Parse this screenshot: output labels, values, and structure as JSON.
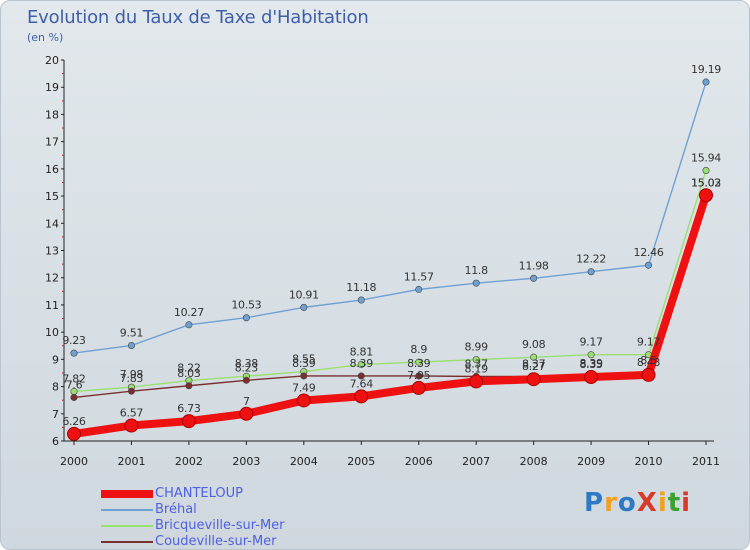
{
  "header": {
    "title": "Evolution du Taux de Taxe d'Habitation",
    "unit": "(en %)"
  },
  "logo": {
    "text": "ProXiti",
    "colors": [
      "#2e78c6",
      "#f2a020",
      "#2e78c6",
      "#d83a2a",
      "#f2a020",
      "#3aa02e",
      "#d83a2a"
    ]
  },
  "chart_data": {
    "type": "line",
    "title": "Evolution du Taux de Taxe d'Habitation",
    "ylabel": "(en %)",
    "xlabel": "",
    "ylim": [
      6,
      20
    ],
    "yticks": [
      6,
      7,
      8,
      9,
      10,
      11,
      12,
      13,
      14,
      15,
      16,
      17,
      18,
      19,
      20
    ],
    "grid": false,
    "legend_position": "bottom-left",
    "categories": [
      "2000",
      "2001",
      "2002",
      "2003",
      "2004",
      "2005",
      "2006",
      "2007",
      "2008",
      "2009",
      "2010",
      "2011"
    ],
    "series": [
      {
        "name": "CHANTELOUP",
        "color": "#ee1111",
        "values": [
          6.26,
          6.57,
          6.73,
          7,
          7.49,
          7.64,
          7.95,
          8.19,
          8.27,
          8.35,
          8.43,
          15.03
        ],
        "labels": [
          "6.26",
          "6.57",
          "6.73",
          "7",
          "7.49",
          "7.64",
          "7.95",
          "8.19",
          "8.27",
          "8.35",
          "8.43",
          "15.03"
        ]
      },
      {
        "name": "Bréhal",
        "color": "#6fa0d2",
        "values": [
          9.23,
          9.51,
          10.27,
          10.53,
          10.91,
          11.18,
          11.57,
          11.8,
          11.98,
          12.22,
          12.46,
          19.19
        ],
        "labels": [
          "9.23",
          "9.51",
          "10.27",
          "10.53",
          "10.91",
          "11.18",
          "11.57",
          "11.8",
          "11.98",
          "12.22",
          "12.46",
          "19.19"
        ]
      },
      {
        "name": "Bricqueville-sur-Mer",
        "color": "#99e070",
        "values": [
          7.82,
          7.98,
          8.22,
          8.38,
          8.55,
          8.81,
          8.9,
          8.99,
          9.08,
          9.17,
          9.17,
          15.94
        ],
        "labels": [
          "7.82",
          "7.98",
          "8.22",
          "8.38",
          "8.55",
          "8.81",
          "8.9",
          "8.99",
          "9.08",
          "9.17",
          "9.17",
          "15.94"
        ]
      },
      {
        "name": "Coudeville-sur-Mer",
        "color": "#7a2f2f",
        "values": [
          7.6,
          7.83,
          8.03,
          8.23,
          8.39,
          8.39,
          8.39,
          8.37,
          8.37,
          8.39,
          8.5,
          15.02
        ],
        "labels": [
          "7.6",
          "7.83",
          "8.03",
          "8.23",
          "8.39",
          "8.39",
          "8.39",
          "8.37",
          "8.37",
          "8.39",
          "8.5",
          "15.02"
        ]
      }
    ]
  }
}
